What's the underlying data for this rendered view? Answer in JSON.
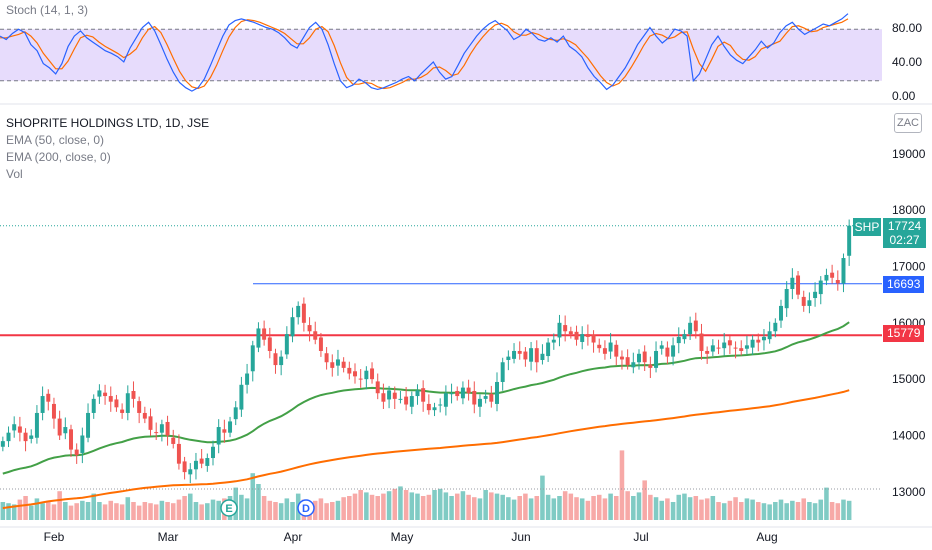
{
  "stoch": {
    "label": "Stoch (14, 1, 3)",
    "levels": [
      "80.00",
      "40.00",
      "0.00"
    ],
    "k": [
      72,
      68,
      75,
      80,
      76,
      62,
      55,
      40,
      35,
      28,
      40,
      60,
      72,
      78,
      70,
      65,
      60,
      55,
      52,
      48,
      42,
      58,
      70,
      82,
      88,
      78,
      62,
      45,
      30,
      18,
      12,
      8,
      12,
      22,
      38,
      55,
      72,
      85,
      90,
      92,
      90,
      88,
      85,
      82,
      80,
      76,
      70,
      62,
      58,
      70,
      82,
      88,
      80,
      62,
      40,
      20,
      12,
      15,
      22,
      18,
      12,
      10,
      12,
      15,
      18,
      22,
      25,
      20,
      28,
      35,
      42,
      30,
      22,
      25,
      38,
      52,
      62,
      72,
      80,
      86,
      90,
      84,
      78,
      68,
      72,
      80,
      75,
      68,
      66,
      70,
      65,
      72,
      60,
      55,
      48,
      35,
      25,
      18,
      10,
      15,
      25,
      35,
      48,
      62,
      72,
      82,
      72,
      64,
      70,
      80,
      78,
      72,
      20,
      28,
      45,
      62,
      72,
      60,
      50,
      44,
      40,
      48,
      56,
      66,
      58,
      64,
      76,
      84,
      88,
      80,
      74,
      78,
      82,
      86,
      84,
      88,
      92,
      98
    ],
    "d": [
      70,
      70,
      72,
      74,
      77,
      72,
      64,
      52,
      43,
      34,
      34,
      43,
      57,
      70,
      73,
      71,
      65,
      60,
      56,
      52,
      47,
      51,
      57,
      70,
      80,
      83,
      76,
      62,
      46,
      31,
      20,
      13,
      11,
      14,
      24,
      38,
      55,
      71,
      82,
      89,
      91,
      90,
      88,
      85,
      82,
      79,
      75,
      69,
      63,
      63,
      70,
      80,
      83,
      77,
      61,
      41,
      24,
      16,
      16,
      18,
      17,
      13,
      11,
      12,
      15,
      18,
      22,
      22,
      24,
      28,
      35,
      36,
      32,
      26,
      28,
      38,
      51,
      62,
      71,
      79,
      85,
      87,
      84,
      77,
      73,
      73,
      76,
      74,
      70,
      68,
      67,
      69,
      66,
      62,
      54,
      46,
      36,
      26,
      18,
      14,
      17,
      25,
      36,
      48,
      61,
      72,
      75,
      73,
      69,
      71,
      76,
      77,
      57,
      40,
      31,
      45,
      60,
      65,
      61,
      51,
      45,
      44,
      48,
      57,
      60,
      63,
      66,
      75,
      83,
      84,
      81,
      77,
      78,
      82,
      84,
      86,
      88,
      92
    ]
  },
  "header": {
    "symbol": "SHOPRITE HOLDINGS LTD, 1D, JSE",
    "indicators": [
      "EMA (50, close, 0)",
      "EMA (200, close, 0)",
      "Vol"
    ],
    "currency": "ZAC"
  },
  "chart_data": {
    "type": "candlestick",
    "title": "SHOPRITE HOLDINGS LTD, 1D, JSE",
    "y_ticks": [
      "19000",
      "18000",
      "17000",
      "16000",
      "15000",
      "14000",
      "13000"
    ],
    "ylim": [
      12500,
      19600
    ],
    "x_ticks": [
      "Feb",
      "Mar",
      "Apr",
      "May",
      "Jun",
      "Jul",
      "Aug"
    ],
    "last_price": "17724",
    "last_symbol": "SHP",
    "countdown": "02:27",
    "support_line": {
      "value": "15779",
      "color": "#f23645"
    },
    "resistance_line": {
      "value": "16693",
      "color": "#2962ff"
    },
    "closes": [
      13900,
      14050,
      14200,
      14050,
      13900,
      14000,
      14400,
      14700,
      14600,
      14300,
      14000,
      14150,
      13750,
      13650,
      14000,
      14400,
      14650,
      14800,
      14700,
      14600,
      14500,
      14400,
      14750,
      14650,
      14400,
      14300,
      14100,
      14050,
      14200,
      14000,
      13850,
      13500,
      13350,
      13400,
      13550,
      13500,
      13600,
      13800,
      14150,
      14050,
      14250,
      14500,
      14900,
      15100,
      15600,
      15900,
      15700,
      15500,
      15250,
      15400,
      15800,
      16100,
      16300,
      16000,
      15850,
      15700,
      15500,
      15300,
      15200,
      15350,
      15200,
      15100,
      15050,
      15000,
      15150,
      15000,
      14750,
      14600,
      14800,
      14650,
      14650,
      14550,
      14700,
      14800,
      14600,
      14450,
      14500,
      14550,
      14750,
      14750,
      14700,
      14850,
      14750,
      14550,
      14650,
      14700,
      14600,
      14950,
      15300,
      15400,
      15500,
      15450,
      15350,
      15550,
      15300,
      15450,
      15650,
      15700,
      16000,
      15850,
      15800,
      15700,
      15800,
      15750,
      15650,
      15550,
      15450,
      15650,
      15400,
      15350,
      15250,
      15300,
      15450,
      15300,
      15200,
      15500,
      15600,
      15400,
      15600,
      15750,
      15800,
      16000,
      15850,
      15500,
      15450,
      15600,
      15550,
      15650,
      15600,
      15550,
      15500,
      15600,
      15700,
      15650,
      15750,
      15850,
      16000,
      16300,
      16600,
      16800,
      16500,
      16300,
      16400,
      16550,
      16750,
      16850,
      16800,
      16700,
      17150,
      17724
    ],
    "volume": [
      30,
      28,
      26,
      34,
      40,
      24,
      36,
      28,
      32,
      26,
      48,
      30,
      24,
      28,
      32,
      30,
      44,
      30,
      26,
      32,
      28,
      26,
      38,
      30,
      24,
      30,
      28,
      26,
      32,
      30,
      28,
      34,
      40,
      44,
      30,
      26,
      28,
      34,
      32,
      36,
      40,
      54,
      42,
      36,
      78,
      60,
      40,
      32,
      30,
      28,
      36,
      30,
      44,
      34,
      30,
      32,
      36,
      28,
      30,
      32,
      38,
      40,
      44,
      50,
      46,
      42,
      40,
      44,
      48,
      52,
      56,
      50,
      46,
      44,
      40,
      42,
      50,
      52,
      46,
      40,
      44,
      48,
      42,
      38,
      36,
      50,
      46,
      44,
      42,
      38,
      34,
      40,
      44,
      36,
      40,
      74,
      42,
      36,
      40,
      48,
      44,
      38,
      36,
      32,
      40,
      42,
      36,
      44,
      40,
      116,
      48,
      40,
      46,
      66,
      42,
      38,
      32,
      36,
      30,
      42,
      44,
      38,
      40,
      34,
      36,
      40,
      30,
      28,
      32,
      38,
      30,
      36,
      34,
      30,
      28,
      26,
      30,
      34,
      28,
      32,
      30,
      36,
      30,
      28,
      34,
      54,
      30,
      28,
      34,
      32
    ],
    "events": [
      "E",
      "D"
    ]
  }
}
